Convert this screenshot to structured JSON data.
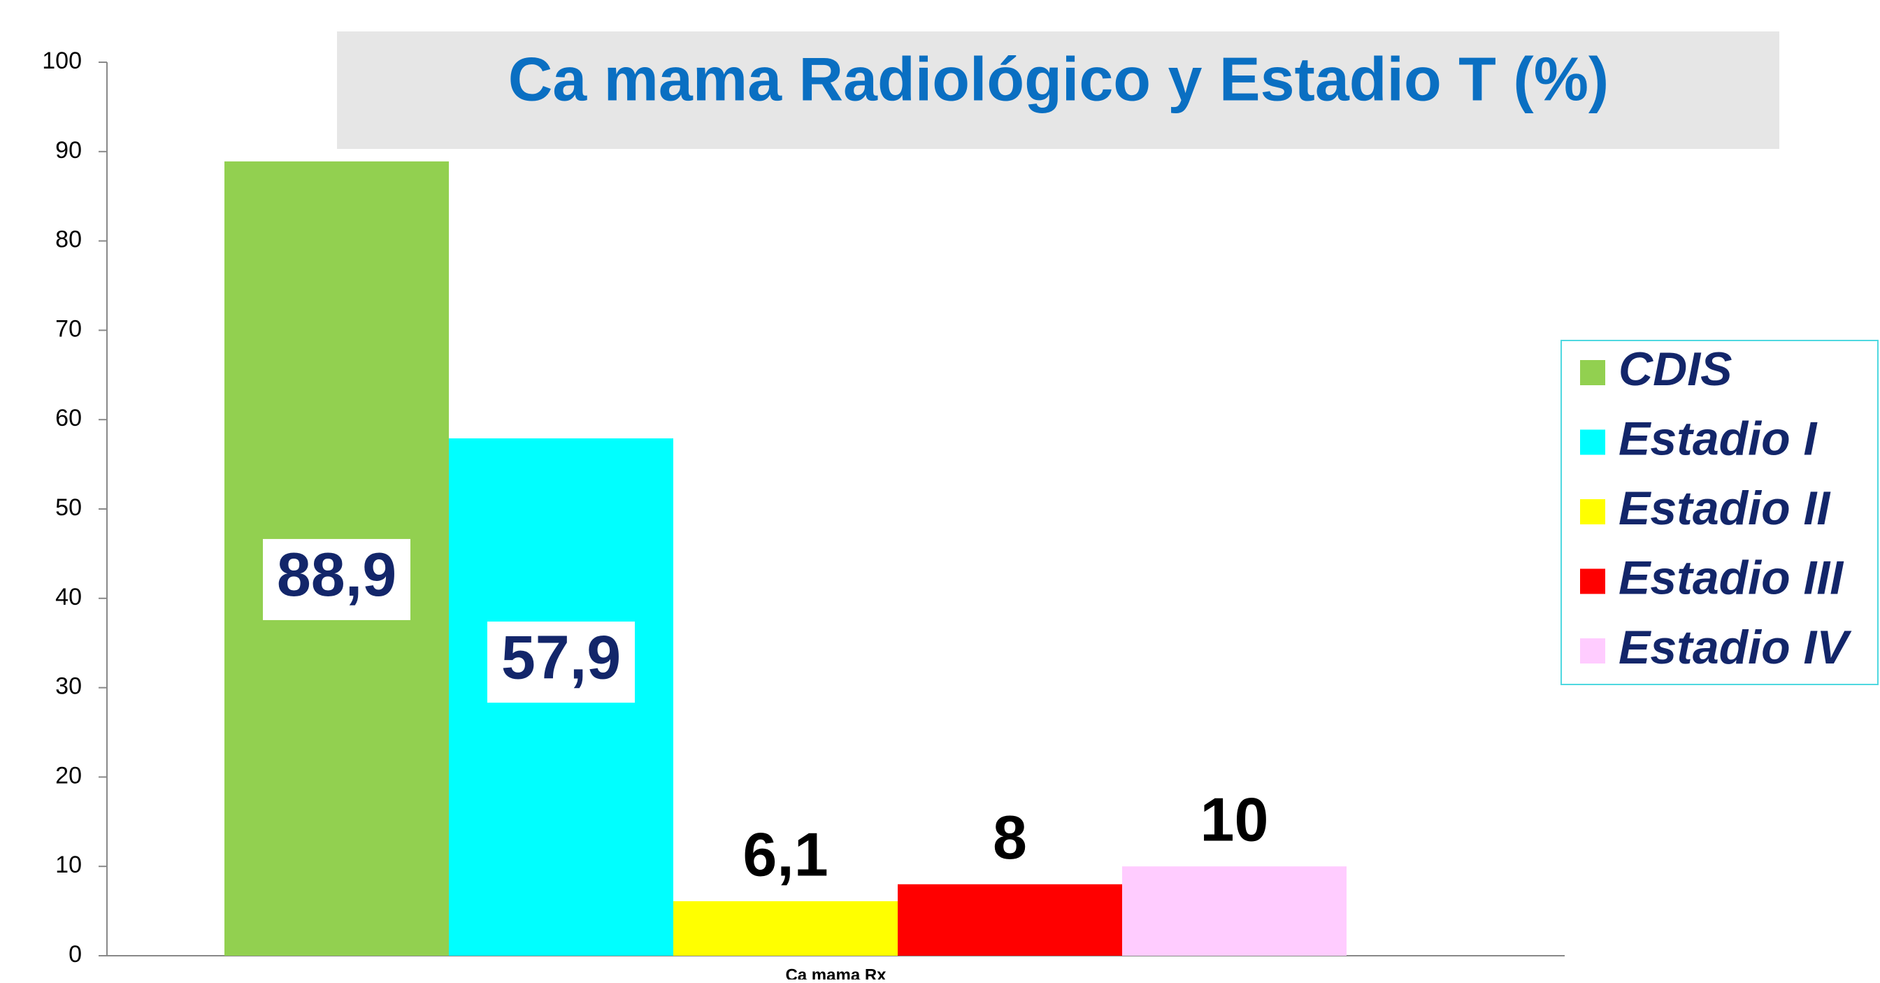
{
  "chart_data": {
    "type": "bar",
    "title": "Ca mama Radiológico y Estadio T (%)",
    "categories": [
      "Ca mama Rx"
    ],
    "series": [
      {
        "name": "CDIS",
        "color": "#92d050",
        "values": [
          88.9
        ],
        "value_labels": [
          "88,9"
        ]
      },
      {
        "name": "Estadio I",
        "color": "#00ffff",
        "values": [
          57.9
        ],
        "value_labels": [
          "57,9"
        ]
      },
      {
        "name": "Estadio II",
        "color": "#ffff00",
        "values": [
          6.1
        ],
        "value_labels": [
          "6,1"
        ]
      },
      {
        "name": "Estadio III",
        "color": "#ff0000",
        "values": [
          8
        ],
        "value_labels": [
          "8"
        ]
      },
      {
        "name": "Estadio IV",
        "color": "#ffccff",
        "values": [
          10
        ],
        "value_labels": [
          "10"
        ]
      }
    ],
    "ylim": [
      0,
      100
    ],
    "yticks": [
      0,
      10,
      20,
      30,
      40,
      50,
      60,
      70,
      80,
      90,
      100
    ],
    "grid": false,
    "legend": "right"
  }
}
